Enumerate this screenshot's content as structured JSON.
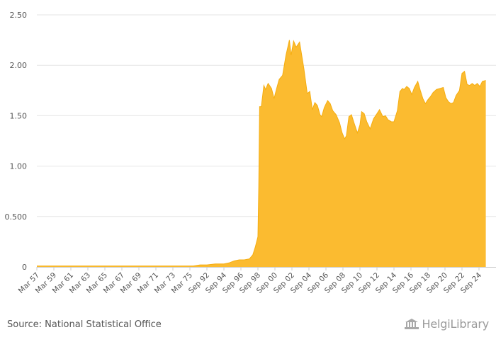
{
  "chart_data": {
    "type": "area",
    "title": "",
    "xlabel": "",
    "ylabel": "",
    "ylim": [
      0,
      2.5
    ],
    "yticks": [
      {
        "value": 0,
        "label": "0"
      },
      {
        "value": 0.5,
        "label": "0.500"
      },
      {
        "value": 1.0,
        "label": "1.00"
      },
      {
        "value": 1.5,
        "label": "1.50"
      },
      {
        "value": 2.0,
        "label": "2.00"
      },
      {
        "value": 2.5,
        "label": "2.50"
      }
    ],
    "xtick_labels": [
      "Mar 57",
      "Mar 59",
      "Mar 61",
      "Mar 63",
      "Mar 65",
      "Mar 67",
      "Mar 69",
      "Mar 71",
      "Mar 73",
      "Mar 75",
      "Sep 92",
      "Sep 94",
      "Sep 96",
      "Sep 98",
      "Sep 00",
      "Sep 02",
      "Sep 04",
      "Sep 06",
      "Sep 08",
      "Sep 10",
      "Sep 12",
      "Sep 14",
      "Sep 16",
      "Sep 18",
      "Sep 20",
      "Sep 22",
      "Sep 24"
    ],
    "color": "#fbbb30",
    "series": [
      {
        "name": "value",
        "points": [
          [
            0,
            0.01
          ],
          [
            9.2,
            0.01
          ],
          [
            9.6,
            0.02
          ],
          [
            10.0,
            0.02
          ],
          [
            10.5,
            0.03
          ],
          [
            11.0,
            0.03
          ],
          [
            11.3,
            0.04
          ],
          [
            11.6,
            0.06
          ],
          [
            11.9,
            0.07
          ],
          [
            12.2,
            0.07
          ],
          [
            12.5,
            0.08
          ],
          [
            12.7,
            0.12
          ],
          [
            12.85,
            0.2
          ],
          [
            13.0,
            0.3
          ],
          [
            13.05,
            0.8
          ],
          [
            13.1,
            1.59
          ],
          [
            13.2,
            1.59
          ],
          [
            13.35,
            1.8
          ],
          [
            13.45,
            1.76
          ],
          [
            13.6,
            1.82
          ],
          [
            13.8,
            1.77
          ],
          [
            13.95,
            1.67
          ],
          [
            14.1,
            1.77
          ],
          [
            14.25,
            1.86
          ],
          [
            14.45,
            1.9
          ],
          [
            14.65,
            2.1
          ],
          [
            14.85,
            2.25
          ],
          [
            14.95,
            2.1
          ],
          [
            15.1,
            2.24
          ],
          [
            15.25,
            2.18
          ],
          [
            15.45,
            2.23
          ],
          [
            15.7,
            1.97
          ],
          [
            15.9,
            1.72
          ],
          [
            16.05,
            1.74
          ],
          [
            16.2,
            1.56
          ],
          [
            16.35,
            1.63
          ],
          [
            16.5,
            1.6
          ],
          [
            16.65,
            1.51
          ],
          [
            16.75,
            1.49
          ],
          [
            16.9,
            1.58
          ],
          [
            17.1,
            1.65
          ],
          [
            17.25,
            1.62
          ],
          [
            17.4,
            1.55
          ],
          [
            17.6,
            1.51
          ],
          [
            17.8,
            1.43
          ],
          [
            17.95,
            1.33
          ],
          [
            18.1,
            1.27
          ],
          [
            18.2,
            1.3
          ],
          [
            18.35,
            1.49
          ],
          [
            18.5,
            1.51
          ],
          [
            18.65,
            1.43
          ],
          [
            18.85,
            1.33
          ],
          [
            19.0,
            1.41
          ],
          [
            19.1,
            1.54
          ],
          [
            19.25,
            1.52
          ],
          [
            19.4,
            1.44
          ],
          [
            19.6,
            1.37
          ],
          [
            19.8,
            1.47
          ],
          [
            20.0,
            1.52
          ],
          [
            20.15,
            1.56
          ],
          [
            20.35,
            1.49
          ],
          [
            20.5,
            1.5
          ],
          [
            20.65,
            1.46
          ],
          [
            20.85,
            1.44
          ],
          [
            21.0,
            1.44
          ],
          [
            21.2,
            1.55
          ],
          [
            21.35,
            1.74
          ],
          [
            21.5,
            1.77
          ],
          [
            21.6,
            1.76
          ],
          [
            21.75,
            1.79
          ],
          [
            21.9,
            1.77
          ],
          [
            22.05,
            1.71
          ],
          [
            22.2,
            1.78
          ],
          [
            22.4,
            1.84
          ],
          [
            22.55,
            1.75
          ],
          [
            22.7,
            1.67
          ],
          [
            22.85,
            1.62
          ],
          [
            23.0,
            1.66
          ],
          [
            23.15,
            1.69
          ],
          [
            23.3,
            1.73
          ],
          [
            23.5,
            1.76
          ],
          [
            23.7,
            1.77
          ],
          [
            23.9,
            1.78
          ],
          [
            24.05,
            1.68
          ],
          [
            24.2,
            1.64
          ],
          [
            24.35,
            1.62
          ],
          [
            24.5,
            1.63
          ],
          [
            24.65,
            1.7
          ],
          [
            24.85,
            1.75
          ],
          [
            25.0,
            1.92
          ],
          [
            25.15,
            1.94
          ],
          [
            25.3,
            1.81
          ],
          [
            25.45,
            1.8
          ],
          [
            25.6,
            1.82
          ],
          [
            25.75,
            1.8
          ],
          [
            25.9,
            1.82
          ],
          [
            26.05,
            1.79
          ],
          [
            26.2,
            1.84
          ],
          [
            26.4,
            1.85
          ]
        ]
      }
    ]
  },
  "footer": {
    "source": "Source: National Statistical Office",
    "logo_text": "HelgiLibrary"
  }
}
